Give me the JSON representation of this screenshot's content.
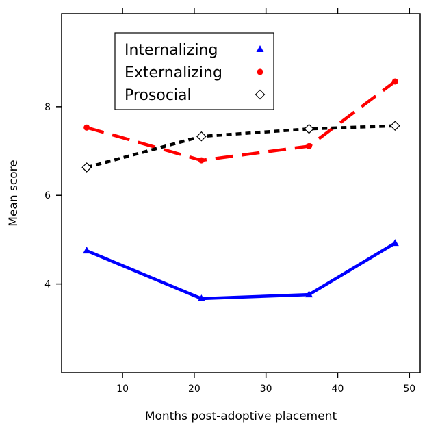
{
  "chart_data": {
    "type": "line",
    "title": "",
    "xlabel": "Months post-adoptive placement",
    "ylabel": "Mean score",
    "xlim": [
      1.5,
      51.5
    ],
    "ylim": [
      2,
      10.1
    ],
    "xticks": [
      10,
      20,
      30,
      40,
      50
    ],
    "yticks": [
      4,
      6,
      8
    ],
    "grid": false,
    "legend_position": "top-left",
    "x": [
      5,
      21,
      36,
      48
    ],
    "series": [
      {
        "name": "Internalizing",
        "values": [
          4.75,
          3.67,
          3.76,
          4.92
        ],
        "color": "#0000ff",
        "line": "solid",
        "marker": "triangle"
      },
      {
        "name": "Externalizing",
        "values": [
          7.53,
          6.79,
          7.11,
          8.57
        ],
        "color": "#ff0000",
        "line": "dashed",
        "marker": "circle"
      },
      {
        "name": "Prosocial",
        "values": [
          6.63,
          7.33,
          7.5,
          7.57
        ],
        "color": "#000000",
        "line": "dotted",
        "marker": "diamond"
      }
    ]
  }
}
